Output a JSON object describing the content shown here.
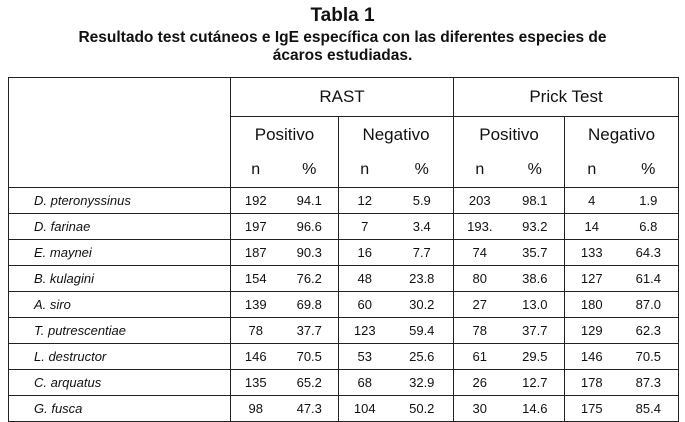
{
  "title": "Tabla 1",
  "subtitle_line1": "Resultado test cutáneos e IgE específica con las diferentes especies de",
  "subtitle_line2": "ácaros estudiadas.",
  "headers": {
    "group1": "RAST",
    "group2": "Prick Test",
    "sub_pos": "Positivo",
    "sub_neg": "Negativo",
    "n": "n",
    "pct": "%"
  },
  "rows": [
    {
      "species": "D. pteronyssinus",
      "rast_pos_n": "192",
      "rast_pos_pct": "94.1",
      "rast_neg_n": "12",
      "rast_neg_pct": "5.9",
      "prick_pos_n": "203",
      "prick_pos_pct": "98.1",
      "prick_neg_n": "4",
      "prick_neg_pct": "1.9"
    },
    {
      "species": "D. farinae",
      "rast_pos_n": "197",
      "rast_pos_pct": "96.6",
      "rast_neg_n": "7",
      "rast_neg_pct": "3.4",
      "prick_pos_n": "193.",
      "prick_pos_pct": "93.2",
      "prick_neg_n": "14",
      "prick_neg_pct": "6.8"
    },
    {
      "species": "E. maynei",
      "rast_pos_n": "187",
      "rast_pos_pct": "90.3",
      "rast_neg_n": "16",
      "rast_neg_pct": "7.7",
      "prick_pos_n": "74",
      "prick_pos_pct": "35.7",
      "prick_neg_n": "133",
      "prick_neg_pct": "64.3"
    },
    {
      "species": "B. kulagini",
      "rast_pos_n": "154",
      "rast_pos_pct": "76.2",
      "rast_neg_n": "48",
      "rast_neg_pct": "23.8",
      "prick_pos_n": "80",
      "prick_pos_pct": "38.6",
      "prick_neg_n": "127",
      "prick_neg_pct": "61.4"
    },
    {
      "species": "A. siro",
      "rast_pos_n": "139",
      "rast_pos_pct": "69.8",
      "rast_neg_n": "60",
      "rast_neg_pct": "30.2",
      "prick_pos_n": "27",
      "prick_pos_pct": "13.0",
      "prick_neg_n": "180",
      "prick_neg_pct": "87.0"
    },
    {
      "species": "T. putrescentiae",
      "rast_pos_n": "78",
      "rast_pos_pct": "37.7",
      "rast_neg_n": "123",
      "rast_neg_pct": "59.4",
      "prick_pos_n": "78",
      "prick_pos_pct": "37.7",
      "prick_neg_n": "129",
      "prick_neg_pct": "62.3"
    },
    {
      "species": "L. destructor",
      "rast_pos_n": "146",
      "rast_pos_pct": "70.5",
      "rast_neg_n": "53",
      "rast_neg_pct": "25.6",
      "prick_pos_n": "61",
      "prick_pos_pct": "29.5",
      "prick_neg_n": "146",
      "prick_neg_pct": "70.5"
    },
    {
      "species": "C. arquatus",
      "rast_pos_n": "135",
      "rast_pos_pct": "65.2",
      "rast_neg_n": "68",
      "rast_neg_pct": "32.9",
      "prick_pos_n": "26",
      "prick_pos_pct": "12.7",
      "prick_neg_n": "178",
      "prick_neg_pct": "87.3"
    },
    {
      "species": "G. fusca",
      "rast_pos_n": "98",
      "rast_pos_pct": "47.3",
      "rast_neg_n": "104",
      "rast_neg_pct": "50.2",
      "prick_pos_n": "30",
      "prick_pos_pct": "14.6",
      "prick_neg_n": "175",
      "prick_neg_pct": "85.4"
    }
  ]
}
